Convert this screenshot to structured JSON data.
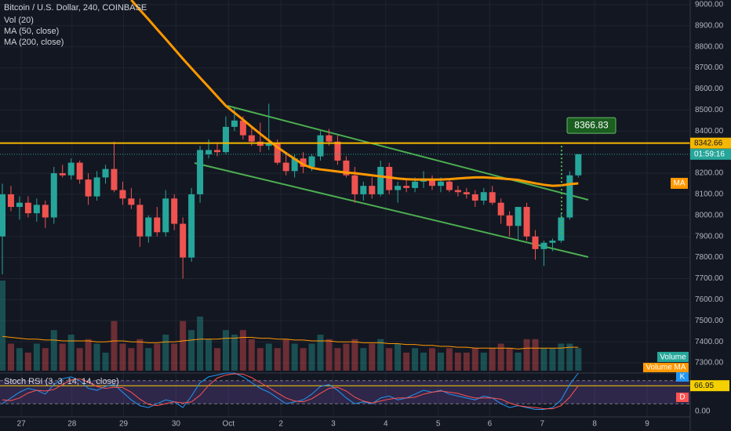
{
  "header": {
    "symbol": "Bitcoin / U.S. Dollar, 240, COINBASE",
    "indicators": [
      "Vol (20)",
      "MA (50, close)",
      "MA (200, close)"
    ]
  },
  "chart_data": [
    {
      "type": "candlestick",
      "ylim": [
        7263,
        9022
      ],
      "yticks": [
        {
          "value": 9000,
          "label": "9000.00"
        },
        {
          "value": 8900,
          "label": "8900.00"
        },
        {
          "value": 8800,
          "label": "8800.00"
        },
        {
          "value": 8700,
          "label": "8700.00"
        },
        {
          "value": 8600,
          "label": "8600.00"
        },
        {
          "value": 8500,
          "label": "8500.00"
        },
        {
          "value": 8400,
          "label": "8400.00"
        },
        {
          "value": 8200,
          "label": "8200.00"
        },
        {
          "value": 8100,
          "label": "8100.00"
        },
        {
          "value": 8000,
          "label": "8000.00"
        },
        {
          "value": 7900,
          "label": "7900.00"
        },
        {
          "value": 7800,
          "label": "7800.00"
        },
        {
          "value": 7700,
          "label": "7700.00"
        },
        {
          "value": 7600,
          "label": "7600.00"
        },
        {
          "value": 7500,
          "label": "7500.00"
        },
        {
          "value": 7400,
          "label": "7400.00"
        },
        {
          "value": 7300,
          "label": "7300.00"
        }
      ],
      "xticks": [
        {
          "value": 2.2,
          "label": "27"
        },
        {
          "value": 8.1,
          "label": "28"
        },
        {
          "value": 14.1,
          "label": "29"
        },
        {
          "value": 20.2,
          "label": "30"
        },
        {
          "value": 26.3,
          "label": "Oct"
        },
        {
          "value": 32.4,
          "label": "2"
        },
        {
          "value": 38.5,
          "label": "3"
        },
        {
          "value": 44.6,
          "label": "4"
        },
        {
          "value": 50.7,
          "label": "5"
        },
        {
          "value": 56.7,
          "label": "6"
        },
        {
          "value": 62.8,
          "label": "7"
        },
        {
          "value": 68.9,
          "label": "8"
        },
        {
          "value": 75,
          "label": "9"
        }
      ],
      "up_color": "#26a69a",
      "down_color": "#ef5350",
      "open": [
        7900,
        8100,
        8040,
        8060,
        8010,
        8050,
        7990,
        8200,
        8190,
        8250,
        8170,
        8090,
        8180,
        8220,
        8120,
        8080,
        8050,
        7900,
        7990,
        7920,
        8080,
        7960,
        7800,
        8100,
        8290,
        8310,
        8300,
        8420,
        8450,
        8380,
        8350,
        8330,
        8340,
        8250,
        8210,
        8270,
        8230,
        8280,
        8380,
        8350,
        8260,
        8190,
        8100,
        8140,
        8100,
        8230,
        8120,
        8140,
        8130,
        8160,
        8170,
        8140,
        8160,
        8120,
        8110,
        8100,
        8070,
        8110,
        8060,
        8000,
        7950,
        8040,
        7900,
        7840,
        7870,
        7880,
        7990,
        8190
      ],
      "high": [
        8150,
        8140,
        8090,
        8090,
        8080,
        8070,
        8230,
        8240,
        8270,
        8260,
        8200,
        8210,
        8240,
        8350,
        8160,
        8130,
        8080,
        8000,
        8040,
        8120,
        8100,
        7990,
        8130,
        8330,
        8360,
        8340,
        8470,
        8510,
        8470,
        8420,
        8440,
        8530,
        8360,
        8300,
        8290,
        8300,
        8290,
        8400,
        8410,
        8380,
        8280,
        8230,
        8160,
        8180,
        8260,
        8250,
        8160,
        8170,
        8180,
        8210,
        8190,
        8180,
        8170,
        8140,
        8130,
        8120,
        8130,
        8140,
        8080,
        8020,
        8040,
        8060,
        7930,
        7880,
        7890,
        8010,
        8210,
        8290
      ],
      "low": [
        7720,
        8020,
        7980,
        7990,
        7970,
        7940,
        7960,
        8180,
        8170,
        8150,
        8050,
        8070,
        8150,
        8110,
        8050,
        8030,
        7850,
        7870,
        7900,
        7900,
        7930,
        7700,
        7780,
        8060,
        8270,
        8280,
        8290,
        8400,
        8360,
        8330,
        8300,
        8310,
        8240,
        8190,
        8180,
        8200,
        8210,
        8260,
        8330,
        8240,
        8180,
        8060,
        8070,
        8080,
        8090,
        8100,
        8060,
        8110,
        8110,
        8130,
        8120,
        8110,
        8110,
        8090,
        8080,
        8040,
        8050,
        8050,
        7960,
        7900,
        7880,
        7880,
        7790,
        7760,
        7830,
        7870,
        7980,
        8180
      ],
      "close": [
        8100,
        8040,
        8060,
        8010,
        8050,
        7990,
        8200,
        8190,
        8250,
        8170,
        8090,
        8180,
        8220,
        8120,
        8080,
        8050,
        7900,
        7990,
        7920,
        8080,
        7960,
        7800,
        8100,
        8310,
        8310,
        8300,
        8420,
        8450,
        8380,
        8350,
        8330,
        8340,
        8250,
        8210,
        8270,
        8230,
        8280,
        8380,
        8350,
        8260,
        8190,
        8100,
        8140,
        8100,
        8230,
        8120,
        8140,
        8130,
        8160,
        8170,
        8140,
        8160,
        8120,
        8110,
        8100,
        8070,
        8110,
        8060,
        8000,
        7950,
        8040,
        7900,
        7840,
        7870,
        7880,
        7990,
        8190,
        8290
      ],
      "ma": {
        "name": "MA",
        "color": "#ff9800",
        "values": [
          null,
          null,
          null,
          null,
          null,
          null,
          null,
          null,
          null,
          null,
          null,
          null,
          null,
          null,
          null,
          9022,
          8975,
          8930,
          8883,
          8837,
          8790,
          8743,
          8698,
          8653,
          8609,
          8564,
          8520,
          8487,
          8454,
          8420,
          8387,
          8355,
          8323,
          8295,
          8268,
          8241,
          8225,
          8218,
          8213,
          8208,
          8203,
          8200,
          8195,
          8190,
          8185,
          8180,
          8175,
          8172,
          8170,
          8170,
          8170,
          8170,
          8172,
          8175,
          8178,
          8180,
          8180,
          8178,
          8175,
          8172,
          8168,
          8160,
          8152,
          8145,
          8140,
          8142,
          8148,
          8152
        ]
      },
      "volume": {
        "name": "Volume",
        "values": [
          100,
          30,
          25,
          20,
          30,
          25,
          45,
          30,
          40,
          25,
          35,
          30,
          20,
          55,
          30,
          25,
          35,
          25,
          30,
          40,
          30,
          55,
          45,
          60,
          35,
          25,
          45,
          40,
          45,
          35,
          25,
          30,
          25,
          35,
          30,
          25,
          30,
          40,
          35,
          25,
          30,
          35,
          25,
          30,
          35,
          25,
          30,
          20,
          25,
          20,
          25,
          20,
          25,
          20,
          20,
          25,
          20,
          25,
          30,
          25,
          20,
          35,
          35,
          25,
          25,
          30,
          30,
          25
        ]
      },
      "volume_ma": {
        "name": "Volume MA",
        "color": "#ff9800",
        "values": [
          38,
          37,
          36,
          35,
          35,
          34,
          34,
          33,
          33,
          33,
          33,
          32,
          32,
          33,
          33,
          32,
          32,
          31,
          31,
          32,
          32,
          33,
          34,
          35,
          35,
          35,
          36,
          36,
          37,
          37,
          36,
          36,
          35,
          35,
          34,
          34,
          33,
          33,
          33,
          32,
          32,
          32,
          31,
          31,
          31,
          30,
          30,
          29,
          29,
          28,
          28,
          27,
          27,
          26,
          26,
          25,
          25,
          25,
          25,
          25,
          24,
          25,
          25,
          25,
          25,
          25,
          26,
          26
        ]
      },
      "price_line": 8342.66,
      "countdown": "01:59:16",
      "callout": 8366.83
    },
    {
      "type": "line",
      "title": "Stoch RSI (3, 3, 14, 14, close)",
      "ylim": [
        0,
        100
      ],
      "yticks": [
        {
          "value": 0,
          "label": "0.00"
        }
      ],
      "bands": [
        20,
        80
      ],
      "level": 66.95,
      "series": [
        {
          "name": "K",
          "color": "#2196f3",
          "values": [
            20,
            35,
            50,
            60,
            55,
            45,
            70,
            85,
            90,
            80,
            60,
            55,
            65,
            70,
            50,
            30,
            15,
            10,
            20,
            30,
            25,
            10,
            40,
            75,
            90,
            95,
            100,
            100,
            90,
            75,
            60,
            50,
            35,
            20,
            25,
            30,
            45,
            65,
            70,
            55,
            35,
            20,
            25,
            20,
            35,
            40,
            30,
            35,
            45,
            55,
            50,
            55,
            45,
            40,
            35,
            30,
            40,
            35,
            20,
            10,
            15,
            10,
            5,
            5,
            10,
            30,
            70,
            100
          ]
        },
        {
          "name": "D",
          "color": "#ff5252",
          "values": [
            30,
            28,
            35,
            48,
            55,
            53,
            57,
            70,
            82,
            85,
            77,
            65,
            60,
            63,
            62,
            50,
            32,
            18,
            15,
            20,
            25,
            22,
            25,
            42,
            68,
            87,
            95,
            98,
            97,
            88,
            75,
            62,
            48,
            35,
            27,
            25,
            33,
            47,
            60,
            63,
            53,
            37,
            27,
            22,
            27,
            32,
            35,
            35,
            37,
            45,
            50,
            53,
            50,
            47,
            40,
            35,
            35,
            35,
            32,
            22,
            15,
            12,
            10,
            7,
            7,
            15,
            37,
            67
          ]
        }
      ]
    }
  ]
}
